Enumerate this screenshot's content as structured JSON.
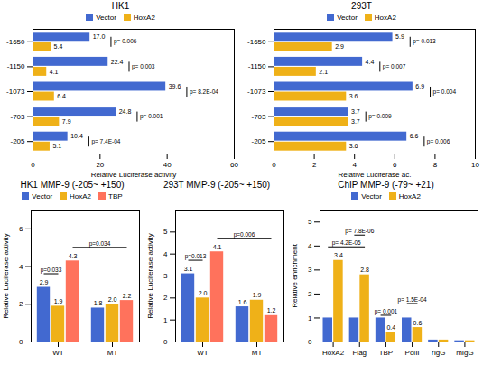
{
  "chart_data": [
    {
      "type": "bar",
      "orientation": "horizontal",
      "title": "HK1",
      "categories": [
        "-1650",
        "-1150",
        "-1073",
        "-703",
        "-205"
      ],
      "series": [
        {
          "name": "Vector",
          "values": [
            17.0,
            22.4,
            39.6,
            24.8,
            10.4
          ],
          "value_labels": [
            "17.0",
            "22.4",
            "39.6",
            "24.8",
            "10.4"
          ]
        },
        {
          "name": "HoxA2",
          "values": [
            5.4,
            4.1,
            6.4,
            7.9,
            5.1
          ],
          "value_labels": [
            "5.4",
            "4.1",
            "6.4",
            "7.9",
            "5.1"
          ]
        }
      ],
      "xlabel": "Relative Luciferase activity",
      "xlim": [
        0,
        60
      ],
      "xticks": [
        0,
        20,
        40,
        60
      ],
      "data_labels": true,
      "legend": "top",
      "annotations": [
        {
          "text": "p= 0.006",
          "from": {
            "category": "-1650",
            "series": "Vector"
          },
          "to": {
            "category": "-1650",
            "series": "HoxA2"
          }
        },
        {
          "text": "p= 0.003",
          "from": {
            "category": "-1150",
            "series": "Vector"
          },
          "to": {
            "category": "-1150",
            "series": "HoxA2"
          }
        },
        {
          "text": "p= 8.2E-04",
          "from": {
            "category": "-1073",
            "series": "Vector"
          },
          "to": {
            "category": "-1073",
            "series": "HoxA2"
          }
        },
        {
          "text": "p= 0.001",
          "from": {
            "category": "-703",
            "series": "Vector"
          },
          "to": {
            "category": "-703",
            "series": "HoxA2"
          }
        },
        {
          "text": "p= 7.4E-04",
          "from": {
            "category": "-205",
            "series": "Vector"
          },
          "to": {
            "category": "-205",
            "series": "HoxA2"
          }
        }
      ]
    },
    {
      "type": "bar",
      "orientation": "horizontal",
      "title": "293T",
      "categories": [
        "-1650",
        "-1150",
        "-1073",
        "-703",
        "-205"
      ],
      "series": [
        {
          "name": "Vector",
          "values": [
            5.9,
            4.4,
            6.9,
            3.7,
            6.6
          ],
          "value_labels": [
            "5.9",
            "4.4",
            "6.9",
            "3.7",
            "6.6"
          ]
        },
        {
          "name": "HoxA2",
          "values": [
            2.9,
            2.1,
            3.6,
            3.7,
            3.6
          ],
          "value_labels": [
            "2.9",
            "2.1",
            "3.6",
            "3.7",
            "3.6"
          ]
        }
      ],
      "xlabel": "Relative Luciferase ac.",
      "xlim": [
        0,
        10
      ],
      "xticks": [
        0,
        2,
        4,
        6,
        8,
        10
      ],
      "data_labels": true,
      "legend": "top",
      "annotations": [
        {
          "text": "p= 0.013",
          "from": {
            "category": "-1650",
            "series": "Vector"
          },
          "to": {
            "category": "-1650",
            "series": "HoxA2"
          }
        },
        {
          "text": "p= 0.007",
          "from": {
            "category": "-1150",
            "series": "Vector"
          },
          "to": {
            "category": "-1150",
            "series": "HoxA2"
          }
        },
        {
          "text": "p= 0.004",
          "from": {
            "category": "-1073",
            "series": "Vector"
          },
          "to": {
            "category": "-1073",
            "series": "HoxA2"
          }
        },
        {
          "text": "p= 0.009",
          "from": {
            "category": "-703",
            "series": "Vector"
          },
          "to": {
            "category": "-703",
            "series": "HoxA2"
          }
        },
        {
          "text": "p= 0.006",
          "from": {
            "category": "-205",
            "series": "Vector"
          },
          "to": {
            "category": "-205",
            "series": "HoxA2"
          }
        }
      ]
    },
    {
      "type": "bar",
      "title": "HK1 MMP-9 (-205~ +150)",
      "categories": [
        "WT",
        "MT"
      ],
      "series": [
        {
          "name": "Vector",
          "values": [
            2.9,
            1.8
          ],
          "value_labels": [
            "2.9",
            "1.8"
          ]
        },
        {
          "name": "HoxA2",
          "values": [
            1.9,
            2.0
          ],
          "value_labels": [
            "1.9",
            "2.0"
          ]
        },
        {
          "name": "TBP",
          "values": [
            4.3,
            2.2
          ],
          "value_labels": [
            "4.3",
            "2.2"
          ]
        }
      ],
      "ylabel": "Relative Luciferase activity",
      "ylim": [
        0,
        7.0
      ],
      "yticks": [
        0,
        2,
        4,
        6
      ],
      "data_labels": true,
      "legend": "top",
      "annotations": [
        {
          "text": "p=0.033",
          "from": {
            "category": "WT",
            "series": "Vector"
          },
          "to": {
            "category": "WT",
            "series": "HoxA2"
          }
        },
        {
          "text": "p=0.034",
          "from": {
            "category": "WT",
            "series": "TBP"
          },
          "to": {
            "category": "MT",
            "series": "TBP"
          }
        }
      ]
    },
    {
      "type": "bar",
      "title": "293T MMP-9 (-205~ +150)",
      "categories": [
        "WT",
        "MT"
      ],
      "series": [
        {
          "name": "Vector",
          "values": [
            3.1,
            1.6
          ],
          "value_labels": [
            "3.1",
            "1.6"
          ]
        },
        {
          "name": "HoxA2",
          "values": [
            2.0,
            1.9
          ],
          "value_labels": [
            "2.0",
            "1.9"
          ]
        },
        {
          "name": "TBP",
          "values": [
            4.1,
            1.2
          ],
          "value_labels": [
            "4.1",
            "1.2"
          ]
        }
      ],
      "ylabel": "Relative Luciferase activity",
      "ylim": [
        0,
        6.0
      ],
      "yticks": [
        0,
        1,
        2,
        3,
        4,
        5
      ],
      "data_labels": true,
      "annotations": [
        {
          "text": "p=0.013",
          "from": {
            "category": "WT",
            "series": "Vector"
          },
          "to": {
            "category": "WT",
            "series": "HoxA2"
          }
        },
        {
          "text": "p=0.006",
          "from": {
            "category": "WT",
            "series": "TBP"
          },
          "to": {
            "category": "MT",
            "series": "TBP"
          }
        }
      ]
    },
    {
      "type": "bar",
      "title": "ChIP MMP-9 (-79~ +21)",
      "categories": [
        "HoxA2",
        "Flag",
        "TBP",
        "PolII",
        "rIgG",
        "mIgG"
      ],
      "series": [
        {
          "name": "Vector",
          "values": [
            1.0,
            1.0,
            1.0,
            1.0,
            0.08,
            0.05
          ]
        },
        {
          "name": "HoxA2",
          "values": [
            3.4,
            2.8,
            0.4,
            0.6,
            0.08,
            0.05
          ],
          "data_labels": true,
          "value_labels": [
            "3.4",
            "2.8",
            "0.4",
            "0.6",
            null,
            null
          ]
        }
      ],
      "ylabel": "Relative enrichment",
      "ylim": [
        0,
        5.5
      ],
      "yticks": [
        0,
        1,
        2,
        3,
        4,
        5
      ],
      "legend": "top",
      "annotations": [
        {
          "text": "p= 4.2E-05",
          "from": {
            "category": "HoxA2",
            "series": "Vector"
          },
          "to": {
            "category": "Flag",
            "series": "HoxA2"
          }
        },
        {
          "text": "p= 7.8E-06",
          "from": {
            "category": "Flag",
            "series": "Vector"
          },
          "to": {
            "category": "Flag",
            "series": "HoxA2"
          }
        },
        {
          "text": "p= 0.001",
          "from": {
            "category": "TBP",
            "series": "Vector"
          },
          "to": {
            "category": "TBP",
            "series": "HoxA2"
          }
        },
        {
          "text": "p= 1.5E-04",
          "from": {
            "category": "PolII",
            "series": "Vector"
          },
          "to": {
            "category": "PolII",
            "series": "HoxA2"
          }
        }
      ]
    }
  ]
}
